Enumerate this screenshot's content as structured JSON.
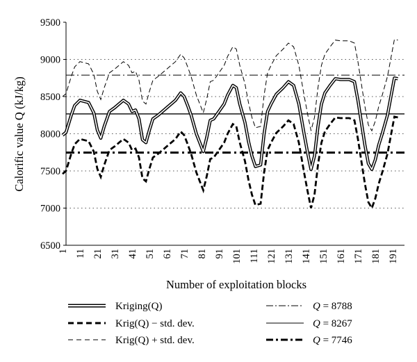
{
  "chart_data": {
    "type": "line",
    "title": "",
    "xlabel": "Number of exploitation blocks",
    "ylabel": "Calorific value Q (kJ/kg)",
    "xlim": [
      1,
      195
    ],
    "ylim": [
      6500,
      9500
    ],
    "x_ticks": [
      1,
      11,
      21,
      31,
      41,
      51,
      61,
      71,
      81,
      91,
      101,
      111,
      121,
      131,
      141,
      151,
      161,
      171,
      181,
      191
    ],
    "y_ticks": [
      6500,
      7000,
      7500,
      8000,
      8500,
      9000,
      9500
    ],
    "y_gridlines": [
      7000,
      7500,
      8000,
      8500,
      9000
    ],
    "grid": "horizontal dotted",
    "legend_position": "bottom",
    "std_dev_offset": 520,
    "series": [
      {
        "name": "Kriging(Q)",
        "style": "double-line",
        "x": [
          1,
          3,
          6,
          8,
          11,
          16,
          19,
          21,
          23,
          25,
          28,
          31,
          36,
          39,
          41,
          43,
          45,
          47,
          49,
          51,
          53,
          56,
          61,
          66,
          69,
          71,
          73,
          75,
          78,
          80,
          82,
          84,
          86,
          88,
          91,
          94,
          96,
          99,
          101,
          103,
          106,
          108,
          110,
          112,
          115,
          117,
          119,
          121,
          124,
          128,
          131,
          134,
          137,
          140,
          142,
          144,
          146,
          148,
          150,
          152,
          155,
          158,
          161,
          166,
          169,
          171,
          173,
          175,
          177,
          179,
          181,
          183,
          185,
          188,
          190,
          192,
          194
        ],
        "values": [
          7980,
          8020,
          8250,
          8380,
          8450,
          8420,
          8280,
          8050,
          7940,
          8100,
          8300,
          8350,
          8450,
          8400,
          8300,
          8320,
          8200,
          7920,
          7880,
          8050,
          8200,
          8250,
          8350,
          8450,
          8550,
          8500,
          8380,
          8250,
          8000,
          7880,
          7760,
          7950,
          8180,
          8200,
          8300,
          8400,
          8520,
          8650,
          8620,
          8400,
          8150,
          7900,
          7700,
          7560,
          7580,
          8000,
          8300,
          8400,
          8530,
          8620,
          8700,
          8650,
          8400,
          8000,
          7750,
          7520,
          7700,
          8100,
          8400,
          8550,
          8650,
          8740,
          8730,
          8730,
          8700,
          8450,
          8150,
          7850,
          7600,
          7520,
          7650,
          7850,
          8000,
          8250,
          8500,
          8750,
          8740
        ]
      },
      {
        "name": "Krig(Q) − std. dev.",
        "style": "thick-dashed",
        "derived_from": "Kriging(Q)",
        "offset": -520
      },
      {
        "name": "Krig(Q) + std. dev.",
        "style": "thin-dashed",
        "derived_from": "Kriging(Q)",
        "offset": 520
      },
      {
        "name": "Q = 8788",
        "style": "dash-dot thin",
        "constant": 8788
      },
      {
        "name": "Q = 8267",
        "style": "solid thin",
        "constant": 8267
      },
      {
        "name": "Q = 7746",
        "style": "dash-dot thick",
        "constant": 7746
      }
    ]
  },
  "legend": {
    "kriging": "Kriging(Q)",
    "krig_minus": "Krig(Q) − std. dev.",
    "krig_plus": "Krig(Q) + std. dev.",
    "q_high_var": "Q",
    "q_high_val": " = 8788",
    "q_mid_var": "Q",
    "q_mid_val": " = 8267",
    "q_low_var": "Q",
    "q_low_val": " = 7746"
  },
  "colors": {
    "line": "#000000",
    "grid": "#555555",
    "background": "#ffffff"
  }
}
